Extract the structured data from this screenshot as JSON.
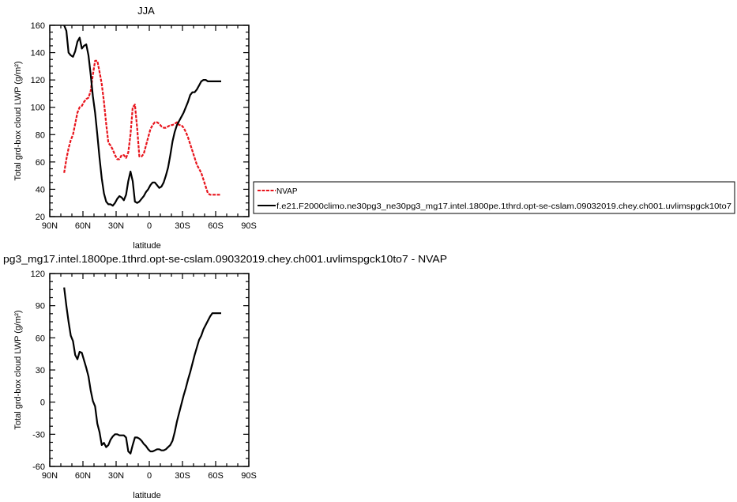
{
  "chart_data": [
    {
      "type": "line",
      "title": "JJA",
      "xlabel": "latitude",
      "ylabel": "Total grd-box cloud LWP (g/m²)",
      "xlim": [
        90,
        -90
      ],
      "ylim": [
        20,
        160
      ],
      "xticks": [
        {
          "v": 90,
          "label": "90N"
        },
        {
          "v": 60,
          "label": "60N"
        },
        {
          "v": 30,
          "label": "30N"
        },
        {
          "v": 0,
          "label": "0"
        },
        {
          "v": -30,
          "label": "30S"
        },
        {
          "v": -60,
          "label": "60S"
        },
        {
          "v": -90,
          "label": "90S"
        }
      ],
      "yticks": [
        20,
        40,
        60,
        80,
        100,
        120,
        140,
        160
      ],
      "legend": "right",
      "series": [
        {
          "name": "NVAP",
          "color": "#e8141c",
          "dash": true,
          "x": [
            77,
            75,
            73,
            71,
            69,
            67,
            65,
            63,
            61,
            59,
            57,
            55,
            53,
            51,
            49,
            47,
            45,
            43,
            41,
            39,
            37,
            35,
            33,
            31,
            29,
            27,
            25,
            23,
            21,
            19,
            17,
            15,
            13,
            11,
            9,
            7,
            5,
            3,
            1,
            -1,
            -3,
            -5,
            -7,
            -9,
            -11,
            -13,
            -15,
            -17,
            -19,
            -21,
            -23,
            -25,
            -27,
            -29,
            -31,
            -33,
            -35,
            -37,
            -39,
            -41,
            -43,
            -45,
            -47,
            -49,
            -51,
            -53,
            -55,
            -57,
            -59,
            -61,
            -63,
            -65
          ],
          "y": [
            52,
            62,
            70,
            76,
            80,
            88,
            96,
            100,
            101,
            104,
            106,
            107,
            112,
            124,
            134,
            134,
            126,
            117,
            104,
            88,
            74,
            72,
            69,
            65,
            62,
            62,
            65,
            65,
            63,
            67,
            80,
            100,
            102,
            85,
            64,
            64,
            66,
            72,
            78,
            84,
            87,
            89,
            89,
            88,
            86,
            85,
            85,
            86,
            87,
            87,
            88,
            89,
            87,
            87,
            85,
            82,
            78,
            73,
            68,
            63,
            58,
            55,
            52,
            47,
            42,
            37,
            36,
            36,
            36,
            36,
            36,
            36
          ]
        },
        {
          "name": "f.e21.F2000climo.ne30pg3_ne30pg3_mg17.intel.1800pe.1thrd.opt-se-cslam.09032019.chey.ch001.uvlimspgck10to7",
          "color": "#000000",
          "dash": false,
          "x": [
            77,
            75,
            73,
            71,
            69,
            67,
            65,
            63,
            61,
            59,
            57,
            55,
            53,
            51,
            49,
            47,
            45,
            43,
            41,
            39,
            37,
            35,
            33,
            31,
            29,
            27,
            25,
            23,
            21,
            19,
            17,
            15,
            13,
            11,
            9,
            7,
            5,
            3,
            1,
            -1,
            -3,
            -5,
            -7,
            -9,
            -11,
            -13,
            -15,
            -17,
            -19,
            -21,
            -23,
            -25,
            -27,
            -29,
            -31,
            -33,
            -35,
            -37,
            -39,
            -41,
            -43,
            -45,
            -47,
            -49,
            -51,
            -53,
            -55,
            -57,
            -59,
            -61,
            -63,
            -65
          ],
          "y": [
            160,
            156,
            140,
            138,
            137,
            141,
            148,
            151,
            143,
            145,
            146,
            138,
            124,
            108,
            96,
            80,
            63,
            48,
            37,
            31,
            29,
            29,
            28,
            30,
            33,
            35,
            34,
            32,
            36,
            46,
            53,
            46,
            31,
            30,
            31,
            33,
            35,
            38,
            40,
            43,
            45,
            45,
            43,
            41,
            42,
            45,
            50,
            56,
            65,
            75,
            82,
            87,
            90,
            93,
            96,
            100,
            104,
            109,
            111,
            111,
            113,
            116,
            119,
            120,
            120,
            119,
            119,
            119,
            119,
            119,
            119,
            119
          ]
        }
      ]
    },
    {
      "type": "line",
      "title": "pg3_mg17.intel.1800pe.1thrd.opt-se-cslam.09032019.chey.ch001.uvlimspgck10to7 - NVAP",
      "xlabel": "latitude",
      "ylabel": "Total grd-box cloud LWP (g/m²)",
      "xlim": [
        90,
        -90
      ],
      "ylim": [
        -60,
        120
      ],
      "xticks": [
        {
          "v": 90,
          "label": "90N"
        },
        {
          "v": 60,
          "label": "60N"
        },
        {
          "v": 30,
          "label": "30N"
        },
        {
          "v": 0,
          "label": "0"
        },
        {
          "v": -30,
          "label": "30S"
        },
        {
          "v": -60,
          "label": "60S"
        },
        {
          "v": -90,
          "label": "90S"
        }
      ],
      "yticks": [
        -60,
        -30,
        0,
        30,
        60,
        90,
        120
      ],
      "series": [
        {
          "color": "#000000",
          "dash": false,
          "x": [
            77,
            75,
            73,
            71,
            69,
            67,
            65,
            63,
            61,
            59,
            57,
            55,
            53,
            51,
            49,
            47,
            45,
            43,
            41,
            39,
            37,
            35,
            33,
            31,
            29,
            27,
            25,
            23,
            21,
            19,
            17,
            15,
            13,
            11,
            9,
            7,
            5,
            3,
            1,
            -1,
            -3,
            -5,
            -7,
            -9,
            -11,
            -13,
            -15,
            -17,
            -19,
            -21,
            -23,
            -25,
            -27,
            -29,
            -31,
            -33,
            -35,
            -37,
            -39,
            -41,
            -43,
            -45,
            -47,
            -49,
            -51,
            -53,
            -55,
            -57,
            -59,
            -61,
            -63,
            -65
          ],
          "y": [
            107,
            90,
            75,
            62,
            57,
            44,
            40,
            47,
            46,
            39,
            32,
            24,
            11,
            1,
            -4,
            -20,
            -28,
            -40,
            -38,
            -42,
            -40,
            -35,
            -32,
            -30,
            -30,
            -31,
            -31,
            -31,
            -33,
            -46,
            -48,
            -40,
            -33,
            -33,
            -34,
            -36,
            -39,
            -41,
            -44,
            -46,
            -46,
            -45,
            -44,
            -44,
            -45,
            -45,
            -44,
            -42,
            -40,
            -36,
            -28,
            -18,
            -10,
            -2,
            6,
            13,
            21,
            28,
            36,
            44,
            51,
            58,
            62,
            68,
            72,
            76,
            80,
            83,
            83,
            83,
            83,
            83
          ]
        }
      ]
    }
  ]
}
